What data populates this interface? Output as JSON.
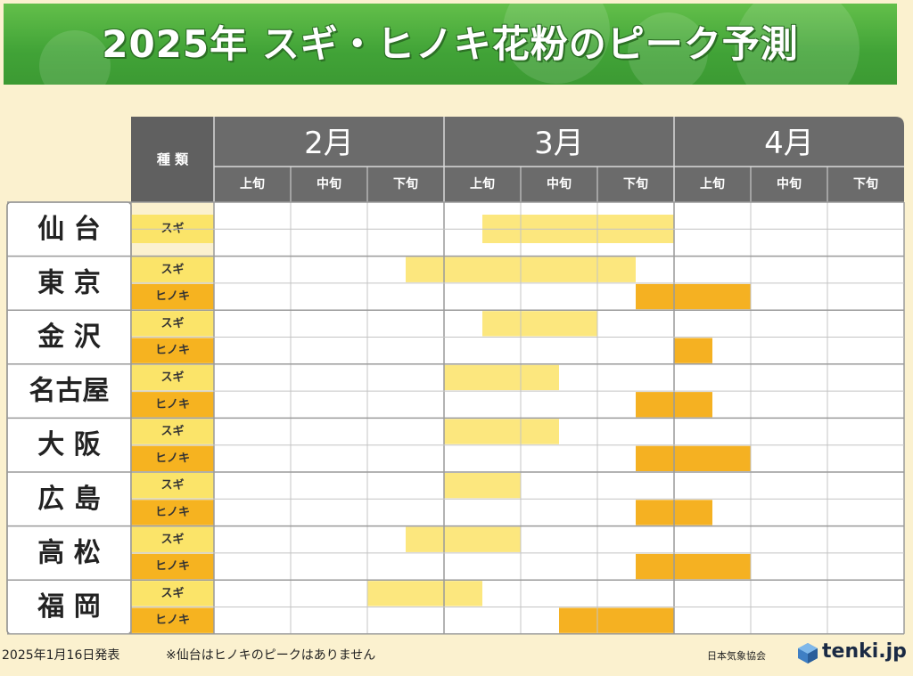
{
  "title": "2025年 スギ・ヒノキ花粉のピーク予測",
  "header": {
    "type_label": "種 類",
    "months": [
      "2月",
      "3月",
      "4月"
    ],
    "periods": [
      "上旬",
      "中旬",
      "下旬"
    ]
  },
  "footer": {
    "date": "2025年1月16日発表",
    "note": "※仙台はヒノキのピークはありません",
    "org": "日本気象協会",
    "brand": "tenki.jp"
  },
  "colors": {
    "banner_green": "#46a83a",
    "header_dark": "#6b6b6b",
    "sugi_label": "#fbe469",
    "hinoki_label": "#f6b320",
    "sugi_bar": "#fce77e",
    "hinoki_bar": "#f5b122",
    "grid": "#c4c4c4"
  },
  "chart_data": {
    "type": "table",
    "columns": [
      "2月上旬",
      "2月中旬",
      "2月下旬",
      "3月上旬",
      "3月中旬",
      "3月下旬",
      "4月上旬",
      "4月中旬",
      "4月下旬"
    ],
    "species": [
      "スギ",
      "ヒノキ"
    ],
    "cities": [
      {
        "name": "仙 台",
        "rows": [
          {
            "species": "スギ",
            "start": 3.5,
            "end": 6.0
          }
        ]
      },
      {
        "name": "東 京",
        "rows": [
          {
            "species": "スギ",
            "start": 2.5,
            "end": 5.5
          },
          {
            "species": "ヒノキ",
            "start": 5.5,
            "end": 7.0
          }
        ]
      },
      {
        "name": "金 沢",
        "rows": [
          {
            "species": "スギ",
            "start": 3.5,
            "end": 5.0
          },
          {
            "species": "ヒノキ",
            "start": 6.0,
            "end": 6.5
          }
        ]
      },
      {
        "name": "名古屋",
        "rows": [
          {
            "species": "スギ",
            "start": 3.0,
            "end": 4.5
          },
          {
            "species": "ヒノキ",
            "start": 5.5,
            "end": 6.5
          }
        ]
      },
      {
        "name": "大 阪",
        "rows": [
          {
            "species": "スギ",
            "start": 3.0,
            "end": 4.5
          },
          {
            "species": "ヒノキ",
            "start": 5.5,
            "end": 7.0
          }
        ]
      },
      {
        "name": "広 島",
        "rows": [
          {
            "species": "スギ",
            "start": 3.0,
            "end": 4.0
          },
          {
            "species": "ヒノキ",
            "start": 5.5,
            "end": 6.5
          }
        ]
      },
      {
        "name": "高 松",
        "rows": [
          {
            "species": "スギ",
            "start": 2.5,
            "end": 4.0
          },
          {
            "species": "ヒノキ",
            "start": 5.5,
            "end": 7.0
          }
        ]
      },
      {
        "name": "福 岡",
        "rows": [
          {
            "species": "スギ",
            "start": 2.0,
            "end": 3.5
          },
          {
            "species": "ヒノキ",
            "start": 4.5,
            "end": 6.0
          }
        ]
      }
    ]
  }
}
